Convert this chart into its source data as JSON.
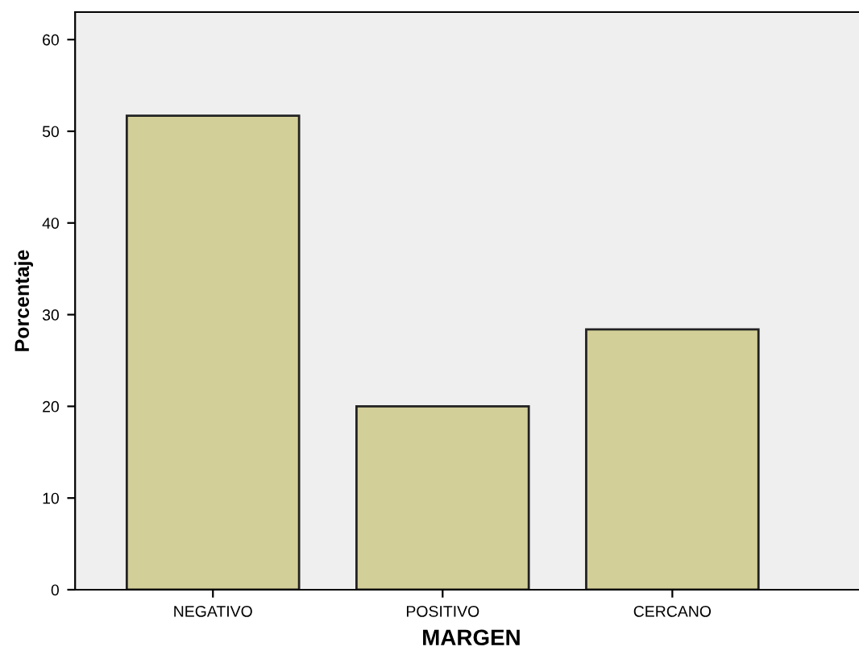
{
  "chart_data": {
    "type": "bar",
    "xlabel": "MARGEN",
    "ylabel": "Porcentaje",
    "categories": [
      "NEGATIVO",
      "POSITIVO",
      "CERCANO"
    ],
    "values": [
      51.7,
      20.0,
      28.4
    ],
    "color": "#d3cf98",
    "ylim": [
      0,
      63
    ],
    "yticks": [
      0,
      10,
      20,
      30,
      40,
      50,
      60
    ],
    "grid": false,
    "legend": false
  }
}
